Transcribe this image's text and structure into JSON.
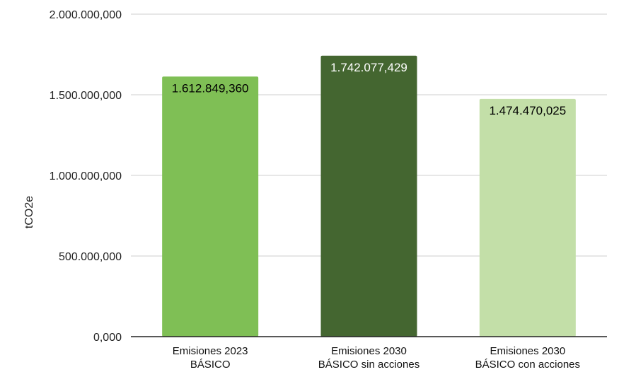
{
  "chart_data": {
    "type": "bar",
    "title": "",
    "xlabel": "",
    "ylabel": "tCO2e",
    "ylim": [
      0,
      2000000000
    ],
    "yticks": [
      {
        "value": 0,
        "label": "0,000"
      },
      {
        "value": 500000000,
        "label": "500.000,000"
      },
      {
        "value": 1000000000,
        "label": "1.000.000,000"
      },
      {
        "value": 1500000000,
        "label": "1.500.000,000"
      },
      {
        "value": 2000000000,
        "label": "2.000.000,000"
      }
    ],
    "grid": true,
    "legend": "none",
    "categories": [
      [
        "Emisiones 2023",
        "BÁSICO"
      ],
      [
        "Emisiones 2030",
        "BÁSICO sin acciones"
      ],
      [
        "Emisiones 2030",
        "BÁSICO con acciones"
      ]
    ],
    "values": [
      1612849360,
      1742077429,
      1474470025
    ],
    "data_labels": [
      "1.612.849,360",
      "1.742.077,429",
      "1.474.470,025"
    ],
    "colors": [
      "#7fbf55",
      "#446630",
      "#c3dfa8"
    ],
    "label_colors": [
      "#000000",
      "#ffffff",
      "#000000"
    ]
  }
}
